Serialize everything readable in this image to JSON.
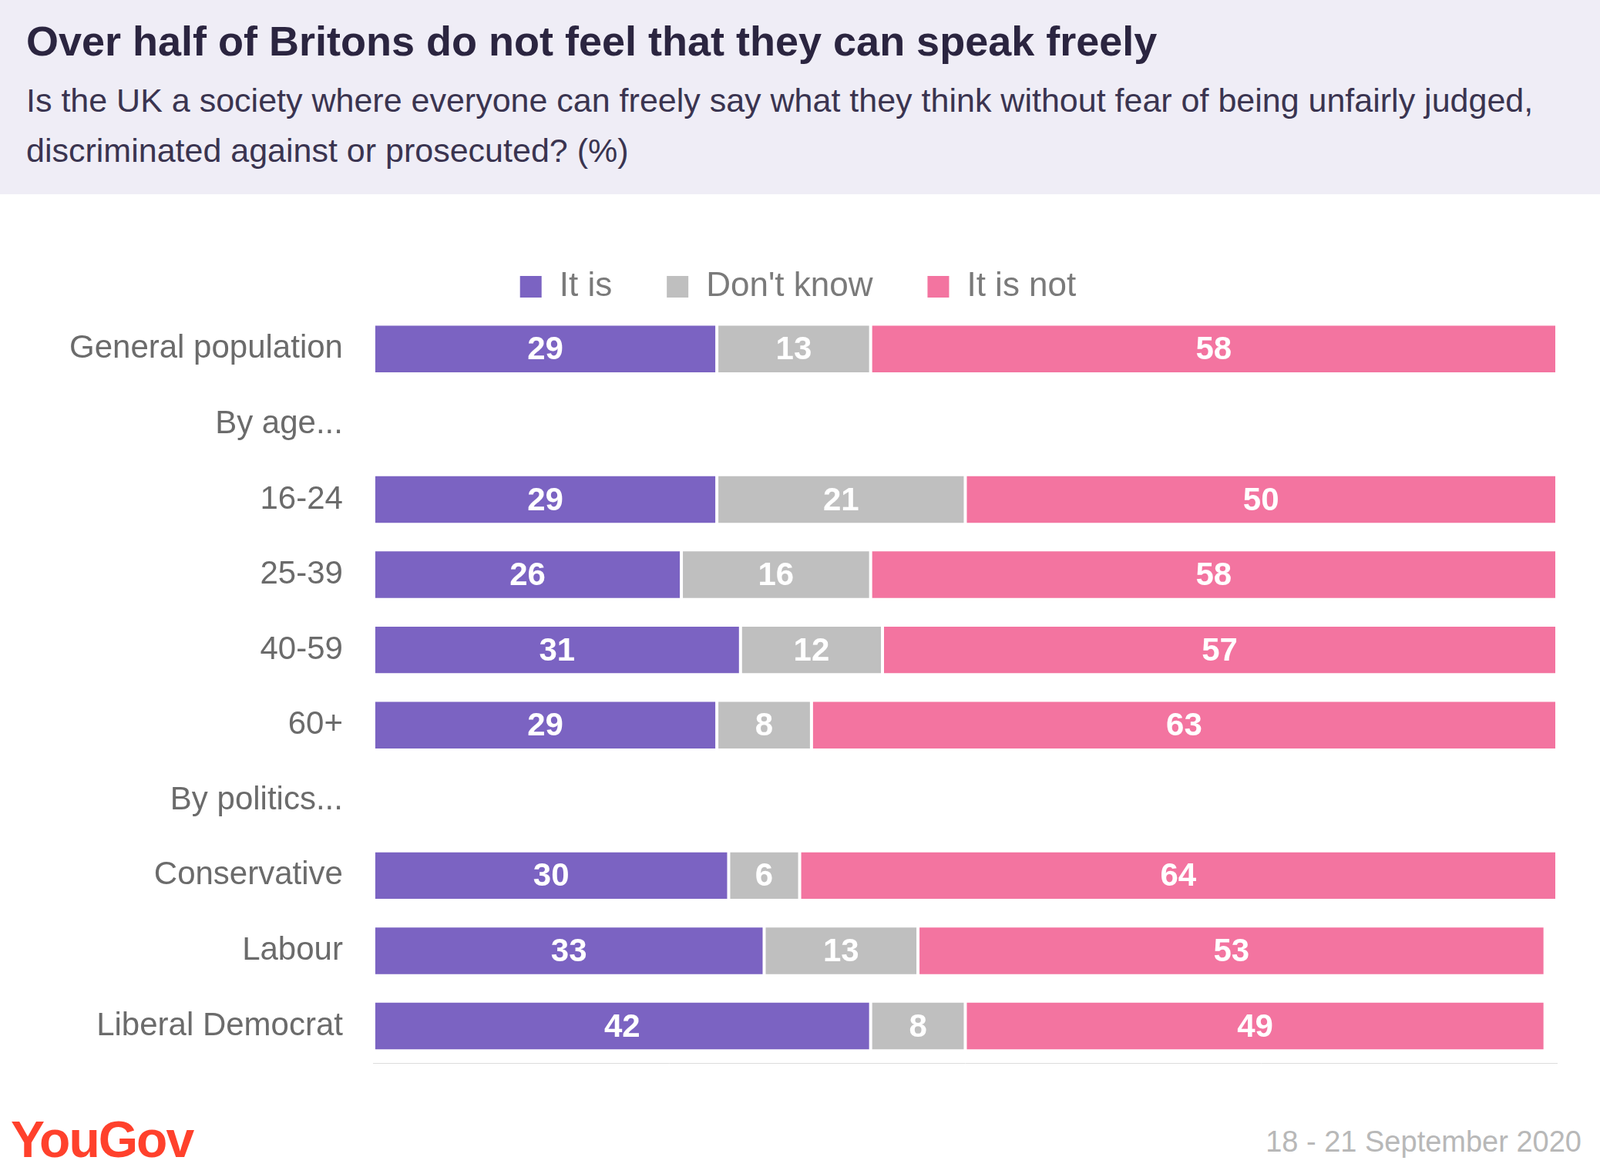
{
  "chart_data": {
    "type": "bar",
    "title": "Over half of Britons do not feel that they can speak freely",
    "subtitle": "Is the UK a society where everyone can freely say what they think without fear of being unfairly judged, discriminated against or prosecuted? (%)",
    "source_logo": "YouGov",
    "date": "18 - 21 September 2020",
    "orientation": "horizontal",
    "stacked": true,
    "data_labels": true,
    "grid": false,
    "legend": "top",
    "tick_labels": "y",
    "xlim": [
      0,
      100
    ],
    "categories": [
      "General population",
      "By age...",
      "16-24",
      "25-39",
      "40-59",
      "60+",
      "By politics...",
      "Conservative",
      "Labour",
      "Liberal Democrat"
    ],
    "series": [
      {
        "name": "It is",
        "color": "#7b63c2",
        "values": [
          29,
          null,
          29,
          26,
          31,
          29,
          null,
          30,
          33,
          42
        ]
      },
      {
        "name": "Don't know",
        "color": "#bfbfbf",
        "values": [
          13,
          null,
          21,
          16,
          12,
          8,
          null,
          6,
          13,
          8
        ]
      },
      {
        "name": "It is not",
        "color": "#f374a0",
        "values": [
          58,
          null,
          50,
          58,
          57,
          63,
          null,
          64,
          53,
          49
        ]
      }
    ]
  }
}
